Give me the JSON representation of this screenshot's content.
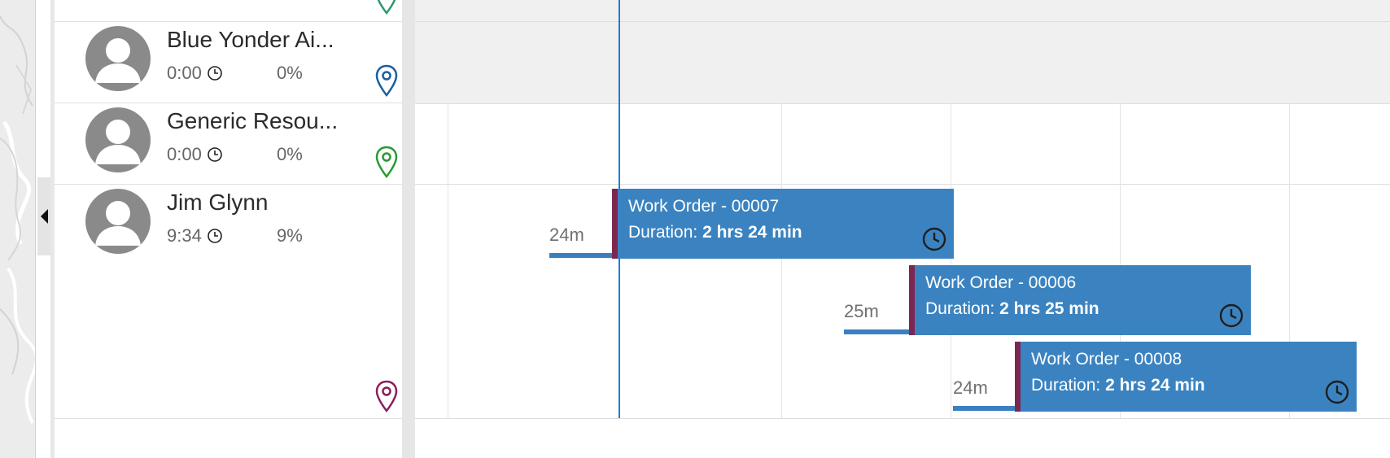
{
  "resources": [
    {
      "name": "Blue Yonder Ai...",
      "time": "0:00",
      "utilization": "0%",
      "pin_color": "#1a5fa0"
    },
    {
      "name": "Generic Resou...",
      "time": "0:00",
      "utilization": "0%",
      "pin_color": "#2a9a32"
    },
    {
      "name": "Jim Glynn",
      "time": "9:34",
      "utilization": "9%",
      "pin_color": "#8a1f5a"
    }
  ],
  "top_partial_pin_color": "#2a9a6a",
  "bookings": [
    {
      "title": "Work Order - 00007",
      "duration_label": "Duration:",
      "duration_value": "2 hrs 24 min",
      "travel": "24m"
    },
    {
      "title": "Work Order - 00006",
      "duration_label": "Duration:",
      "duration_value": "2 hrs 25 min",
      "travel": "25m"
    },
    {
      "title": "Work Order - 00008",
      "duration_label": "Duration:",
      "duration_value": "2 hrs 24 min",
      "travel": "24m"
    }
  ],
  "colors": {
    "booking": "#3b83c0",
    "booking_accent": "#7c2752",
    "now_line": "#1f7bd1"
  }
}
